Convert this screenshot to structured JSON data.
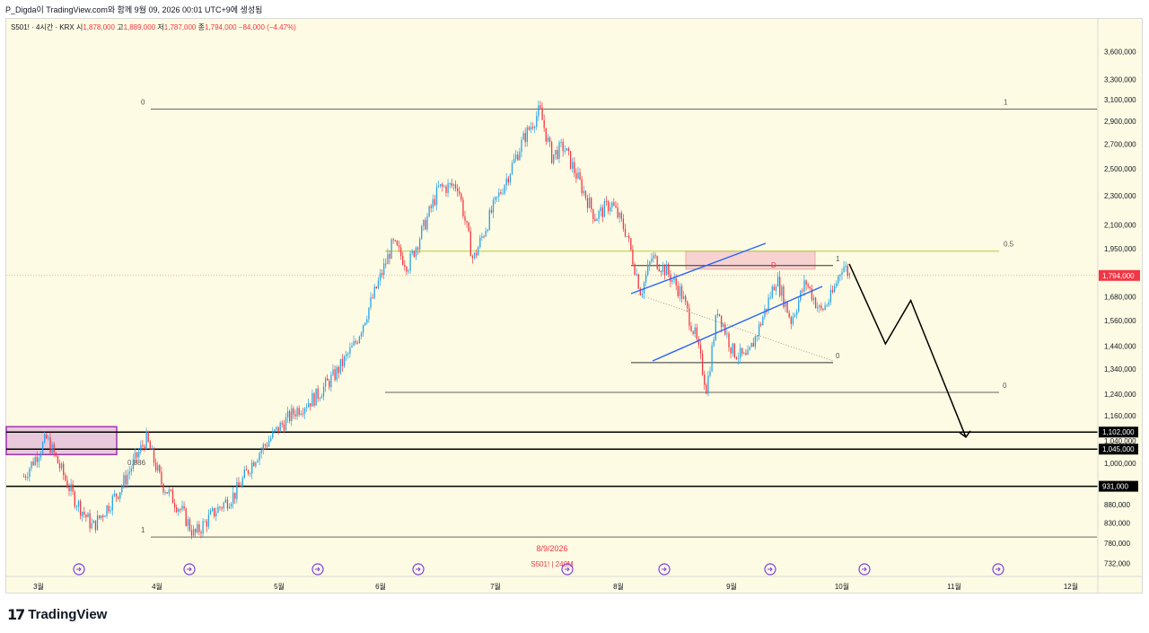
{
  "caption": "P_Digda이 TradingView.com와 함께 9월 09, 2026 00:01 UTC+9에 생성됨",
  "header": {
    "symbol": "S501! · 4시간 · KRX",
    "open_label": "시",
    "open": "1,878,000",
    "high_label": "고",
    "high": "1,889,000",
    "low_label": "저",
    "low": "1,787,000",
    "close_label": "종",
    "close": "1,794,000",
    "change": "−84,000 (−4.47%)"
  },
  "colors": {
    "background": "#fdfbe3",
    "up": "#26a2e6",
    "down": "#f23645",
    "channel": "#2962ff",
    "fib_half": "#b5cc3a",
    "zone_fill": "#e8c9dc",
    "zone_border": "#9c27b0",
    "price_tag": "#f23645"
  },
  "chart_data": {
    "type": "candlestick",
    "interval": "4시간",
    "y_scale": "log",
    "y_ticks": [
      "3,600,000",
      "3,300,000",
      "3,100,000",
      "2,900,000",
      "2,700,000",
      "2,500,000",
      "2,300,000",
      "2,100,000",
      "1,950,000",
      "1,680,000",
      "1,560,000",
      "1,440,000",
      "1,340,000",
      "1,240,000",
      "1,160,000",
      "1,000,000",
      "880,000",
      "830,000",
      "780,000",
      "732,000"
    ],
    "y_tick_values": [
      3600000,
      3300000,
      3100000,
      2900000,
      2700000,
      2500000,
      2300000,
      2100000,
      1950000,
      1680000,
      1560000,
      1440000,
      1340000,
      1240000,
      1160000,
      1000000,
      880000,
      830000,
      780000,
      732000
    ],
    "x_ticks": [
      "3월",
      "4월",
      "5월",
      "6월",
      "7월",
      "8월",
      "9월",
      "10월",
      "11월",
      "12월"
    ],
    "x_tick_dates": [
      "2026-03-01",
      "2026-04-01",
      "2026-05-01",
      "2026-06-01",
      "2026-07-01",
      "2026-08-01",
      "2026-09-01",
      "2026-10-01",
      "2026-11-01",
      "2026-12-01"
    ],
    "last_price": "1,794,000",
    "last_price_value": 1794000,
    "horizontal_levels": [
      {
        "label": "1,102,000",
        "value": 1102000
      },
      {
        "label": "1,045,000",
        "value": 1045000
      },
      {
        "label": "931,000",
        "value": 931000
      }
    ],
    "hidden_tick": "1,040,000",
    "fib_labels": [
      "0",
      "1",
      "0.5",
      "1",
      "0",
      "0",
      "0.886",
      "1"
    ],
    "fib_levels": [
      {
        "label": "0",
        "value": 3010000
      },
      {
        "label": "1",
        "value": 3010000
      },
      {
        "label": "0.5",
        "value": 1935000
      },
      {
        "label": "1",
        "value": 1850000
      },
      {
        "label": "0",
        "value": 1368000
      },
      {
        "label": "0",
        "value": 1247000
      },
      {
        "label": "0.886",
        "value": 980000
      },
      {
        "label": "1",
        "value": 795000
      }
    ],
    "date_label": "8/9/2026",
    "date_sublabel": "S501! | 240M",
    "pattern_label": "D",
    "price_path": [
      [
        "2026-02-25",
        960000
      ],
      [
        "2026-03-03",
        1080000
      ],
      [
        "2026-03-10",
        900000
      ],
      [
        "2026-03-15",
        820000
      ],
      [
        "2026-03-22",
        920000
      ],
      [
        "2026-03-29",
        1080000
      ],
      [
        "2026-04-02",
        940000
      ],
      [
        "2026-04-07",
        860000
      ],
      [
        "2026-04-10",
        800000
      ],
      [
        "2026-04-15",
        860000
      ],
      [
        "2026-04-20",
        910000
      ],
      [
        "2026-04-25",
        1020000
      ],
      [
        "2026-05-01",
        1120000
      ],
      [
        "2026-05-06",
        1180000
      ],
      [
        "2026-05-12",
        1230000
      ],
      [
        "2026-05-18",
        1320000
      ],
      [
        "2026-05-24",
        1450000
      ],
      [
        "2026-05-30",
        1700000
      ],
      [
        "2026-06-04",
        1980000
      ],
      [
        "2026-06-08",
        1850000
      ],
      [
        "2026-06-12",
        2080000
      ],
      [
        "2026-06-16",
        2350000
      ],
      [
        "2026-06-21",
        2380000
      ],
      [
        "2026-06-25",
        1880000
      ],
      [
        "2026-06-30",
        2200000
      ],
      [
        "2026-07-04",
        2450000
      ],
      [
        "2026-07-08",
        2750000
      ],
      [
        "2026-07-12",
        3000000
      ],
      [
        "2026-07-15",
        2600000
      ],
      [
        "2026-07-18",
        2680000
      ],
      [
        "2026-07-22",
        2400000
      ],
      [
        "2026-07-26",
        2150000
      ],
      [
        "2026-07-30",
        2250000
      ],
      [
        "2026-08-03",
        2050000
      ],
      [
        "2026-08-07",
        1700000
      ],
      [
        "2026-08-10",
        1900000
      ],
      [
        "2026-08-14",
        1820000
      ],
      [
        "2026-08-18",
        1700000
      ],
      [
        "2026-08-22",
        1480000
      ],
      [
        "2026-08-25",
        1260000
      ],
      [
        "2026-08-28",
        1620000
      ],
      [
        "2026-09-01",
        1420000
      ],
      [
        "2026-09-05",
        1380000
      ],
      [
        "2026-09-09",
        1560000
      ],
      [
        "2026-09-13",
        1780000
      ],
      [
        "2026-09-17",
        1560000
      ],
      [
        "2026-09-21",
        1760000
      ],
      [
        "2026-09-25",
        1600000
      ],
      [
        "2026-09-28",
        1680000
      ],
      [
        "2026-10-01",
        1860000
      ],
      [
        "2026-10-03",
        1794000
      ]
    ],
    "projection_path": [
      [
        "2026-10-03",
        1860000
      ],
      [
        "2026-10-13",
        1450000
      ],
      [
        "2026-10-20",
        1660000
      ],
      [
        "2026-11-04",
        1085000
      ]
    ]
  }
}
